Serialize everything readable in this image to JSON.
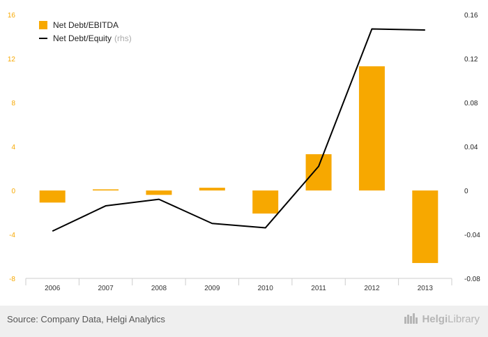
{
  "chart_data": {
    "type": "bar+line",
    "categories": [
      "2006",
      "2007",
      "2008",
      "2009",
      "2010",
      "2011",
      "2012",
      "2013"
    ],
    "series": [
      {
        "name": "Net Debt/EBITDA",
        "type": "bar",
        "axis": "left",
        "color": "#f7a800",
        "values": [
          -1.1,
          0.1,
          -0.4,
          0.25,
          -2.1,
          3.3,
          11.3,
          -6.6
        ]
      },
      {
        "name": "Net Debt/Equity",
        "type": "line",
        "axis": "right",
        "color": "#000000",
        "values": [
          -0.037,
          -0.014,
          -0.008,
          -0.03,
          -0.034,
          0.022,
          0.147,
          0.146
        ]
      }
    ],
    "left_axis": {
      "ticks": [
        "16",
        "12",
        "8",
        "4",
        "0",
        "-4",
        "-8"
      ],
      "ylim": [
        -8,
        16
      ]
    },
    "right_axis": {
      "ticks": [
        "0.16",
        "0.12",
        "0.08",
        "0.04",
        "0",
        "-0.04",
        "-0.08"
      ],
      "ylim": [
        -0.08,
        0.16
      ]
    },
    "legend": {
      "placement": "top-left",
      "rhs_note": "(rhs)"
    },
    "grid": false
  },
  "footer": {
    "source": "Source: Company Data, Helgi Analytics",
    "brand_bold": "Helgi",
    "brand_regular": "Library"
  }
}
